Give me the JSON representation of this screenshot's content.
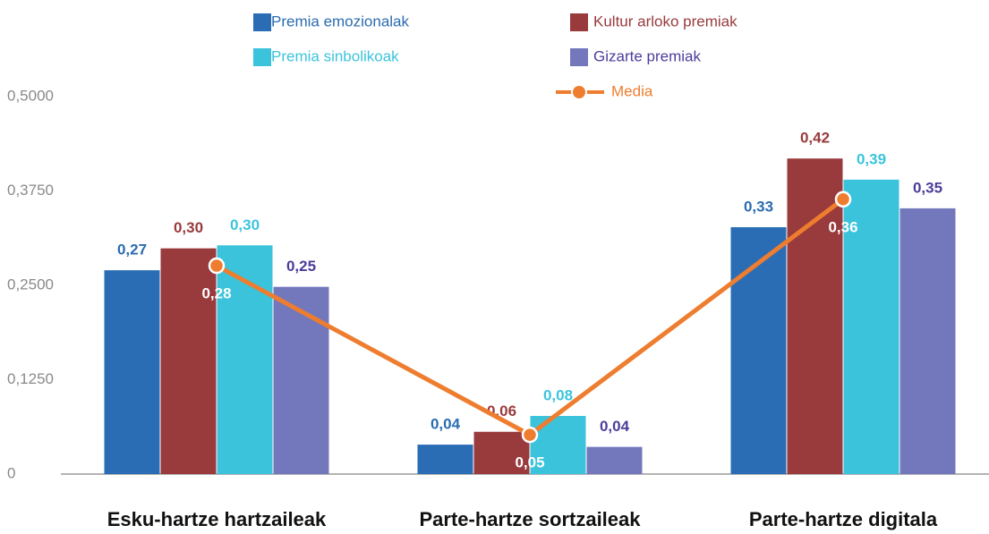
{
  "chart_data": {
    "type": "bar",
    "categories": [
      "Esku-hartze hartzaileak",
      "Parte-hartze sortzaileak",
      "Parte-hartze digitala"
    ],
    "series": [
      {
        "name": "Premia emozionalak",
        "color": "#2a6db5",
        "label_color": "#2b6cb0",
        "values": [
          0.27,
          0.039,
          0.327
        ],
        "value_labels": [
          "0,27",
          "0,04",
          "0,33"
        ]
      },
      {
        "name": "Kultur arloko premiak",
        "color": "#993a3c",
        "label_color": "#993a3c",
        "values": [
          0.299,
          0.056,
          0.418
        ],
        "value_labels": [
          "0,30",
          "0,06",
          "0,42"
        ]
      },
      {
        "name": "Premia sinbolikoak",
        "color": "#3ac3db",
        "label_color": "#3cc4dc",
        "values": [
          0.303,
          0.077,
          0.39
        ],
        "value_labels": [
          "0,30",
          "0,08",
          "0,39"
        ]
      },
      {
        "name": "Gizarte premiak",
        "color": "#7378bd",
        "label_color": "#4b3d9a",
        "values": [
          0.248,
          0.036,
          0.352
        ],
        "value_labels": [
          "0,25",
          "0,04",
          "0,35"
        ]
      },
      {
        "name": "Media",
        "type": "line",
        "color": "#ee7d2f",
        "label_color": "#ffffff",
        "values": [
          0.276,
          0.052,
          0.364
        ],
        "value_labels": [
          "0,28",
          "0,05",
          "0,36"
        ]
      }
    ],
    "ylim": [
      0,
      0.5
    ],
    "yticks": [
      0,
      {
        "value": 0.125,
        "label": "0,1250"
      },
      {
        "value": 0.25,
        "label": "0,2500"
      },
      {
        "value": 0.375,
        "label": "0,3750"
      },
      {
        "value": 0.5,
        "label": "0,5000"
      }
    ]
  }
}
